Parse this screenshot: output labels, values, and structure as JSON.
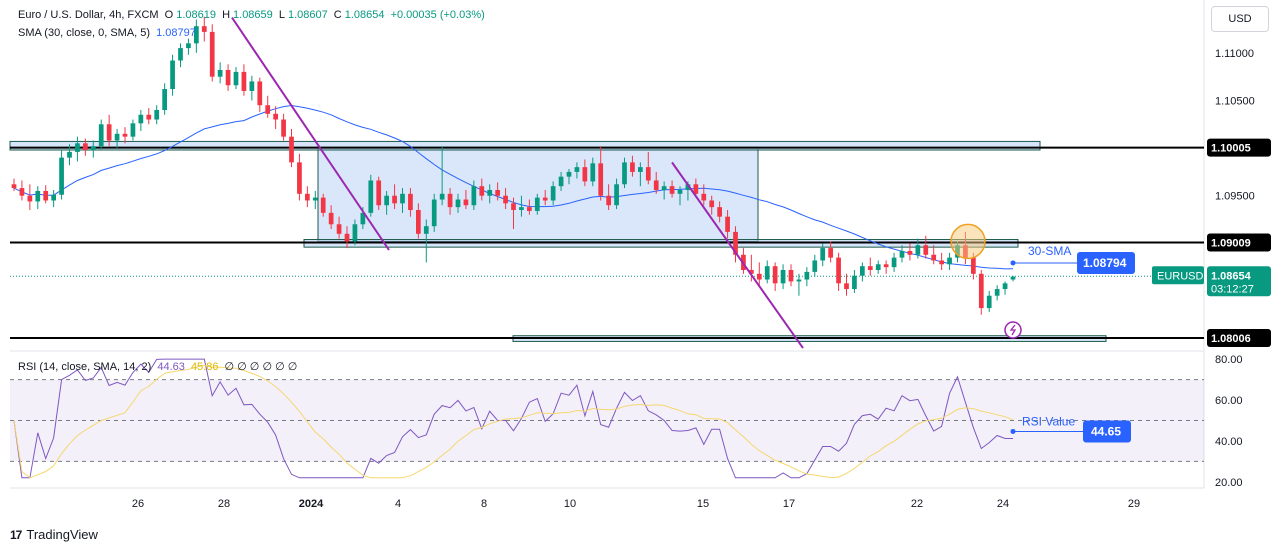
{
  "header": {
    "symbol_line": "Euro / U.S. Dollar, 4h, FXCM",
    "ohlc": {
      "o_label": "O",
      "o": "1.08619",
      "h_label": "H",
      "h": "1.08659",
      "l_label": "L",
      "l": "1.08607",
      "c_label": "C",
      "c": "1.08654",
      "change": "+0.00035 (+0.03%)"
    },
    "sma_label": "SMA (30, close, 0, SMA, 5)",
    "sma_value": "1.08797",
    "rsi_label": "RSI (14, close, SMA, 14, 2)",
    "rsi_value": "44.63",
    "rsi_ma_value": "45.86",
    "rsi_extra": "∅ ∅ ∅ ∅ ∅ ∅"
  },
  "currency_button": "USD",
  "footer": {
    "brand": "TradingView",
    "logo": "17"
  },
  "colors": {
    "up": "#089981",
    "down": "#f23645",
    "sma": "#2962ff",
    "trendline": "#9c27b0",
    "zone": "#bbd3f7",
    "rsi": "#7e57c2",
    "rsi_ma": "#f5d76e",
    "label_blue": "#2962ff"
  },
  "chart_data": {
    "type": "candlestick",
    "price_axis": {
      "ticks": [
        "1.11000",
        "1.10500",
        "1.09500",
        "1.08006"
      ],
      "range": [
        1.0788,
        1.1145
      ]
    },
    "x_axis": {
      "ticks": [
        "26",
        "28",
        "2024",
        "4",
        "8",
        "10",
        "15",
        "17",
        "22",
        "24",
        "29"
      ]
    },
    "levels": [
      {
        "label": "1.10005",
        "value": 1.10005
      },
      {
        "label": "1.09009",
        "value": 1.09009
      },
      {
        "label": "1.08006",
        "value": 1.08006
      }
    ],
    "current_price": {
      "symbol": "EURUSD",
      "price": "1.08654",
      "countdown": "03:12:27"
    },
    "sma_callout": {
      "text": "30-SMA",
      "value": "1.08794"
    },
    "rsi_axis": {
      "ticks": [
        "80.00",
        "60.00",
        "40.00",
        "20.00"
      ],
      "range": [
        17,
        83
      ],
      "bands": [
        70,
        50,
        30
      ]
    },
    "rsi_callout": {
      "text": "RSI Value",
      "value": "44.65"
    },
    "candles": [
      {
        "o": 1.0962,
        "h": 1.0968,
        "l": 1.0955,
        "c": 1.0958
      },
      {
        "o": 1.0958,
        "h": 1.0966,
        "l": 1.0945,
        "c": 1.095
      },
      {
        "o": 1.095,
        "h": 1.0962,
        "l": 1.0935,
        "c": 1.0944
      },
      {
        "o": 1.0944,
        "h": 1.096,
        "l": 1.0936,
        "c": 1.0955
      },
      {
        "o": 1.0955,
        "h": 1.0961,
        "l": 1.0942,
        "c": 1.0945
      },
      {
        "o": 1.0945,
        "h": 1.0956,
        "l": 1.0938,
        "c": 1.0951
      },
      {
        "o": 1.0951,
        "h": 1.0998,
        "l": 1.0946,
        "c": 1.099
      },
      {
        "o": 1.099,
        "h": 1.1004,
        "l": 1.0982,
        "c": 1.0996
      },
      {
        "o": 1.0996,
        "h": 1.1012,
        "l": 1.0986,
        "c": 1.1005
      },
      {
        "o": 1.1005,
        "h": 1.101,
        "l": 1.0992,
        "c": 1.0998
      },
      {
        "o": 1.0998,
        "h": 1.1008,
        "l": 1.099,
        "c": 1.1002
      },
      {
        "o": 1.1002,
        "h": 1.103,
        "l": 1.0998,
        "c": 1.1025
      },
      {
        "o": 1.1025,
        "h": 1.1035,
        "l": 1.1002,
        "c": 1.1008
      },
      {
        "o": 1.1008,
        "h": 1.102,
        "l": 1.1,
        "c": 1.1015
      },
      {
        "o": 1.1015,
        "h": 1.1022,
        "l": 1.1005,
        "c": 1.1012
      },
      {
        "o": 1.1012,
        "h": 1.103,
        "l": 1.1008,
        "c": 1.1026
      },
      {
        "o": 1.1026,
        "h": 1.104,
        "l": 1.1018,
        "c": 1.1035
      },
      {
        "o": 1.1035,
        "h": 1.1042,
        "l": 1.1025,
        "c": 1.103
      },
      {
        "o": 1.103,
        "h": 1.1045,
        "l": 1.1025,
        "c": 1.104
      },
      {
        "o": 1.104,
        "h": 1.1068,
        "l": 1.1035,
        "c": 1.1062
      },
      {
        "o": 1.1062,
        "h": 1.1098,
        "l": 1.1055,
        "c": 1.1092
      },
      {
        "o": 1.1092,
        "h": 1.111,
        "l": 1.1085,
        "c": 1.1105
      },
      {
        "o": 1.1105,
        "h": 1.1115,
        "l": 1.1098,
        "c": 1.111
      },
      {
        "o": 1.111,
        "h": 1.1135,
        "l": 1.11,
        "c": 1.1128
      },
      {
        "o": 1.1128,
        "h": 1.1138,
        "l": 1.1112,
        "c": 1.1122
      },
      {
        "o": 1.1122,
        "h": 1.113,
        "l": 1.107,
        "c": 1.1075
      },
      {
        "o": 1.1075,
        "h": 1.109,
        "l": 1.1068,
        "c": 1.1082
      },
      {
        "o": 1.1082,
        "h": 1.1088,
        "l": 1.106,
        "c": 1.1066
      },
      {
        "o": 1.1066,
        "h": 1.1085,
        "l": 1.1062,
        "c": 1.108
      },
      {
        "o": 1.108,
        "h": 1.1088,
        "l": 1.1055,
        "c": 1.106
      },
      {
        "o": 1.106,
        "h": 1.1076,
        "l": 1.105,
        "c": 1.107
      },
      {
        "o": 1.107,
        "h": 1.1074,
        "l": 1.1038,
        "c": 1.1045
      },
      {
        "o": 1.1045,
        "h": 1.1055,
        "l": 1.1032,
        "c": 1.1036
      },
      {
        "o": 1.1036,
        "h": 1.1044,
        "l": 1.102,
        "c": 1.103
      },
      {
        "o": 1.103,
        "h": 1.1036,
        "l": 1.1008,
        "c": 1.1012
      },
      {
        "o": 1.1012,
        "h": 1.102,
        "l": 1.098,
        "c": 1.0985
      },
      {
        "o": 1.0985,
        "h": 1.0994,
        "l": 1.0945,
        "c": 1.0952
      },
      {
        "o": 1.0952,
        "h": 1.096,
        "l": 1.0938,
        "c": 1.0945
      },
      {
        "o": 1.0945,
        "h": 1.0955,
        "l": 1.0936,
        "c": 1.0948
      },
      {
        "o": 1.0948,
        "h": 1.0952,
        "l": 1.0928,
        "c": 1.0932
      },
      {
        "o": 1.0932,
        "h": 1.094,
        "l": 1.0915,
        "c": 1.092
      },
      {
        "o": 1.092,
        "h": 1.0928,
        "l": 1.0905,
        "c": 1.091
      },
      {
        "o": 1.091,
        "h": 1.0918,
        "l": 1.0895,
        "c": 1.0902
      },
      {
        "o": 1.0902,
        "h": 1.0925,
        "l": 1.0898,
        "c": 1.092
      },
      {
        "o": 1.092,
        "h": 1.0938,
        "l": 1.0915,
        "c": 1.0932
      },
      {
        "o": 1.0932,
        "h": 1.0972,
        "l": 1.0928,
        "c": 1.0966
      },
      {
        "o": 1.0966,
        "h": 1.097,
        "l": 1.0935,
        "c": 1.094
      },
      {
        "o": 1.094,
        "h": 1.0955,
        "l": 1.093,
        "c": 1.095
      },
      {
        "o": 1.095,
        "h": 1.0962,
        "l": 1.0936,
        "c": 1.0942
      },
      {
        "o": 1.0942,
        "h": 1.0958,
        "l": 1.0932,
        "c": 1.0952
      },
      {
        "o": 1.0952,
        "h": 1.0958,
        "l": 1.0928,
        "c": 1.0935
      },
      {
        "o": 1.0935,
        "h": 1.0942,
        "l": 1.0905,
        "c": 1.091
      },
      {
        "o": 1.091,
        "h": 1.0925,
        "l": 1.088,
        "c": 1.0918
      },
      {
        "o": 1.0918,
        "h": 1.0952,
        "l": 1.0912,
        "c": 1.0946
      },
      {
        "o": 1.0946,
        "h": 1.1002,
        "l": 1.094,
        "c": 1.0952
      },
      {
        "o": 1.0952,
        "h": 1.0958,
        "l": 1.093,
        "c": 1.0938
      },
      {
        "o": 1.0938,
        "h": 1.0952,
        "l": 1.0932,
        "c": 1.0946
      },
      {
        "o": 1.0946,
        "h": 1.0956,
        "l": 1.0936,
        "c": 1.094
      },
      {
        "o": 1.094,
        "h": 1.0966,
        "l": 1.0935,
        "c": 1.096
      },
      {
        "o": 1.096,
        "h": 1.0968,
        "l": 1.0945,
        "c": 1.095
      },
      {
        "o": 1.095,
        "h": 1.0962,
        "l": 1.0942,
        "c": 1.0956
      },
      {
        "o": 1.0956,
        "h": 1.0964,
        "l": 1.0945,
        "c": 1.095
      },
      {
        "o": 1.095,
        "h": 1.0958,
        "l": 1.0936,
        "c": 1.0942
      },
      {
        "o": 1.0942,
        "h": 1.0948,
        "l": 1.0915,
        "c": 1.0935
      },
      {
        "o": 1.0935,
        "h": 1.095,
        "l": 1.0928,
        "c": 1.0938
      },
      {
        "o": 1.0938,
        "h": 1.0946,
        "l": 1.093,
        "c": 1.0934
      },
      {
        "o": 1.0934,
        "h": 1.0952,
        "l": 1.093,
        "c": 1.0948
      },
      {
        "o": 1.0948,
        "h": 1.0956,
        "l": 1.094,
        "c": 1.0945
      },
      {
        "o": 1.0945,
        "h": 1.0965,
        "l": 1.094,
        "c": 1.096
      },
      {
        "o": 1.096,
        "h": 1.0975,
        "l": 1.0955,
        "c": 1.097
      },
      {
        "o": 1.097,
        "h": 1.0978,
        "l": 1.0962,
        "c": 1.0975
      },
      {
        "o": 1.0975,
        "h": 1.0985,
        "l": 1.0968,
        "c": 1.098
      },
      {
        "o": 1.098,
        "h": 1.0988,
        "l": 1.096,
        "c": 1.0965
      },
      {
        "o": 1.0965,
        "h": 1.099,
        "l": 1.096,
        "c": 1.0984
      },
      {
        "o": 1.0984,
        "h": 1.1002,
        "l": 1.0945,
        "c": 1.095
      },
      {
        "o": 1.095,
        "h": 1.0962,
        "l": 1.0935,
        "c": 1.094
      },
      {
        "o": 1.094,
        "h": 1.0968,
        "l": 1.0936,
        "c": 1.0962
      },
      {
        "o": 1.0962,
        "h": 1.099,
        "l": 1.0958,
        "c": 1.0985
      },
      {
        "o": 1.0985,
        "h": 1.0992,
        "l": 1.097,
        "c": 1.0975
      },
      {
        "o": 1.0975,
        "h": 1.0985,
        "l": 1.096,
        "c": 1.098
      },
      {
        "o": 1.098,
        "h": 1.0996,
        "l": 1.0962,
        "c": 1.0966
      },
      {
        "o": 1.0966,
        "h": 1.0975,
        "l": 1.0952,
        "c": 1.0956
      },
      {
        "o": 1.0956,
        "h": 1.0965,
        "l": 1.0946,
        "c": 1.096
      },
      {
        "o": 1.096,
        "h": 1.0966,
        "l": 1.0948,
        "c": 1.0952
      },
      {
        "o": 1.0952,
        "h": 1.096,
        "l": 1.094,
        "c": 1.0956
      },
      {
        "o": 1.0956,
        "h": 1.0965,
        "l": 1.0945,
        "c": 1.0962
      },
      {
        "o": 1.0962,
        "h": 1.0968,
        "l": 1.0948,
        "c": 1.0952
      },
      {
        "o": 1.0952,
        "h": 1.0962,
        "l": 1.094,
        "c": 1.0945
      },
      {
        "o": 1.0945,
        "h": 1.095,
        "l": 1.093,
        "c": 1.0938
      },
      {
        "o": 1.0938,
        "h": 1.0944,
        "l": 1.0922,
        "c": 1.0928
      },
      {
        "o": 1.0928,
        "h": 1.0935,
        "l": 1.0905,
        "c": 1.0912
      },
      {
        "o": 1.0912,
        "h": 1.0918,
        "l": 1.088,
        "c": 1.0888
      },
      {
        "o": 1.0888,
        "h": 1.0895,
        "l": 1.0868,
        "c": 1.0872
      },
      {
        "o": 1.0872,
        "h": 1.0888,
        "l": 1.086,
        "c": 1.0868
      },
      {
        "o": 1.0868,
        "h": 1.088,
        "l": 1.0855,
        "c": 1.0862
      },
      {
        "o": 1.0862,
        "h": 1.0882,
        "l": 1.0858,
        "c": 1.0876
      },
      {
        "o": 1.0876,
        "h": 1.088,
        "l": 1.085,
        "c": 1.0858
      },
      {
        "o": 1.0858,
        "h": 1.0878,
        "l": 1.0852,
        "c": 1.0872
      },
      {
        "o": 1.0872,
        "h": 1.0878,
        "l": 1.0855,
        "c": 1.086
      },
      {
        "o": 1.086,
        "h": 1.0868,
        "l": 1.0845,
        "c": 1.0862
      },
      {
        "o": 1.0862,
        "h": 1.0875,
        "l": 1.0855,
        "c": 1.087
      },
      {
        "o": 1.087,
        "h": 1.0888,
        "l": 1.0865,
        "c": 1.0882
      },
      {
        "o": 1.0882,
        "h": 1.09,
        "l": 1.0876,
        "c": 1.0895
      },
      {
        "o": 1.0895,
        "h": 1.0902,
        "l": 1.088,
        "c": 1.0885
      },
      {
        "o": 1.0885,
        "h": 1.089,
        "l": 1.085,
        "c": 1.0858
      },
      {
        "o": 1.0858,
        "h": 1.0868,
        "l": 1.0845,
        "c": 1.0852
      },
      {
        "o": 1.0852,
        "h": 1.0872,
        "l": 1.0848,
        "c": 1.0866
      },
      {
        "o": 1.0866,
        "h": 1.088,
        "l": 1.086,
        "c": 1.0876
      },
      {
        "o": 1.0876,
        "h": 1.0885,
        "l": 1.0866,
        "c": 1.0872
      },
      {
        "o": 1.0872,
        "h": 1.0882,
        "l": 1.0868,
        "c": 1.0878
      },
      {
        "o": 1.0878,
        "h": 1.0882,
        "l": 1.0868,
        "c": 1.0875
      },
      {
        "o": 1.0875,
        "h": 1.089,
        "l": 1.087,
        "c": 1.0885
      },
      {
        "o": 1.0885,
        "h": 1.0898,
        "l": 1.088,
        "c": 1.0892
      },
      {
        "o": 1.0892,
        "h": 1.09,
        "l": 1.0882,
        "c": 1.0888
      },
      {
        "o": 1.0888,
        "h": 1.0905,
        "l": 1.0884,
        "c": 1.0898
      },
      {
        "o": 1.0898,
        "h": 1.0908,
        "l": 1.0884,
        "c": 1.0888
      },
      {
        "o": 1.0888,
        "h": 1.0898,
        "l": 1.0878,
        "c": 1.0882
      },
      {
        "o": 1.0882,
        "h": 1.089,
        "l": 1.0872,
        "c": 1.0878
      },
      {
        "o": 1.0878,
        "h": 1.089,
        "l": 1.0872,
        "c": 1.0885
      },
      {
        "o": 1.0885,
        "h": 1.0902,
        "l": 1.088,
        "c": 1.0898
      },
      {
        "o": 1.0898,
        "h": 1.0912,
        "l": 1.0878,
        "c": 1.0885
      },
      {
        "o": 1.0885,
        "h": 1.089,
        "l": 1.0862,
        "c": 1.0868
      },
      {
        "o": 1.0868,
        "h": 1.0872,
        "l": 1.0825,
        "c": 1.0832
      },
      {
        "o": 1.0832,
        "h": 1.085,
        "l": 1.0828,
        "c": 1.0845
      },
      {
        "o": 1.0845,
        "h": 1.0856,
        "l": 1.084,
        "c": 1.0852
      },
      {
        "o": 1.0852,
        "h": 1.086,
        "l": 1.0846,
        "c": 1.0858
      },
      {
        "o": 1.0862,
        "h": 1.0866,
        "l": 1.086,
        "c": 1.0865
      }
    ]
  }
}
